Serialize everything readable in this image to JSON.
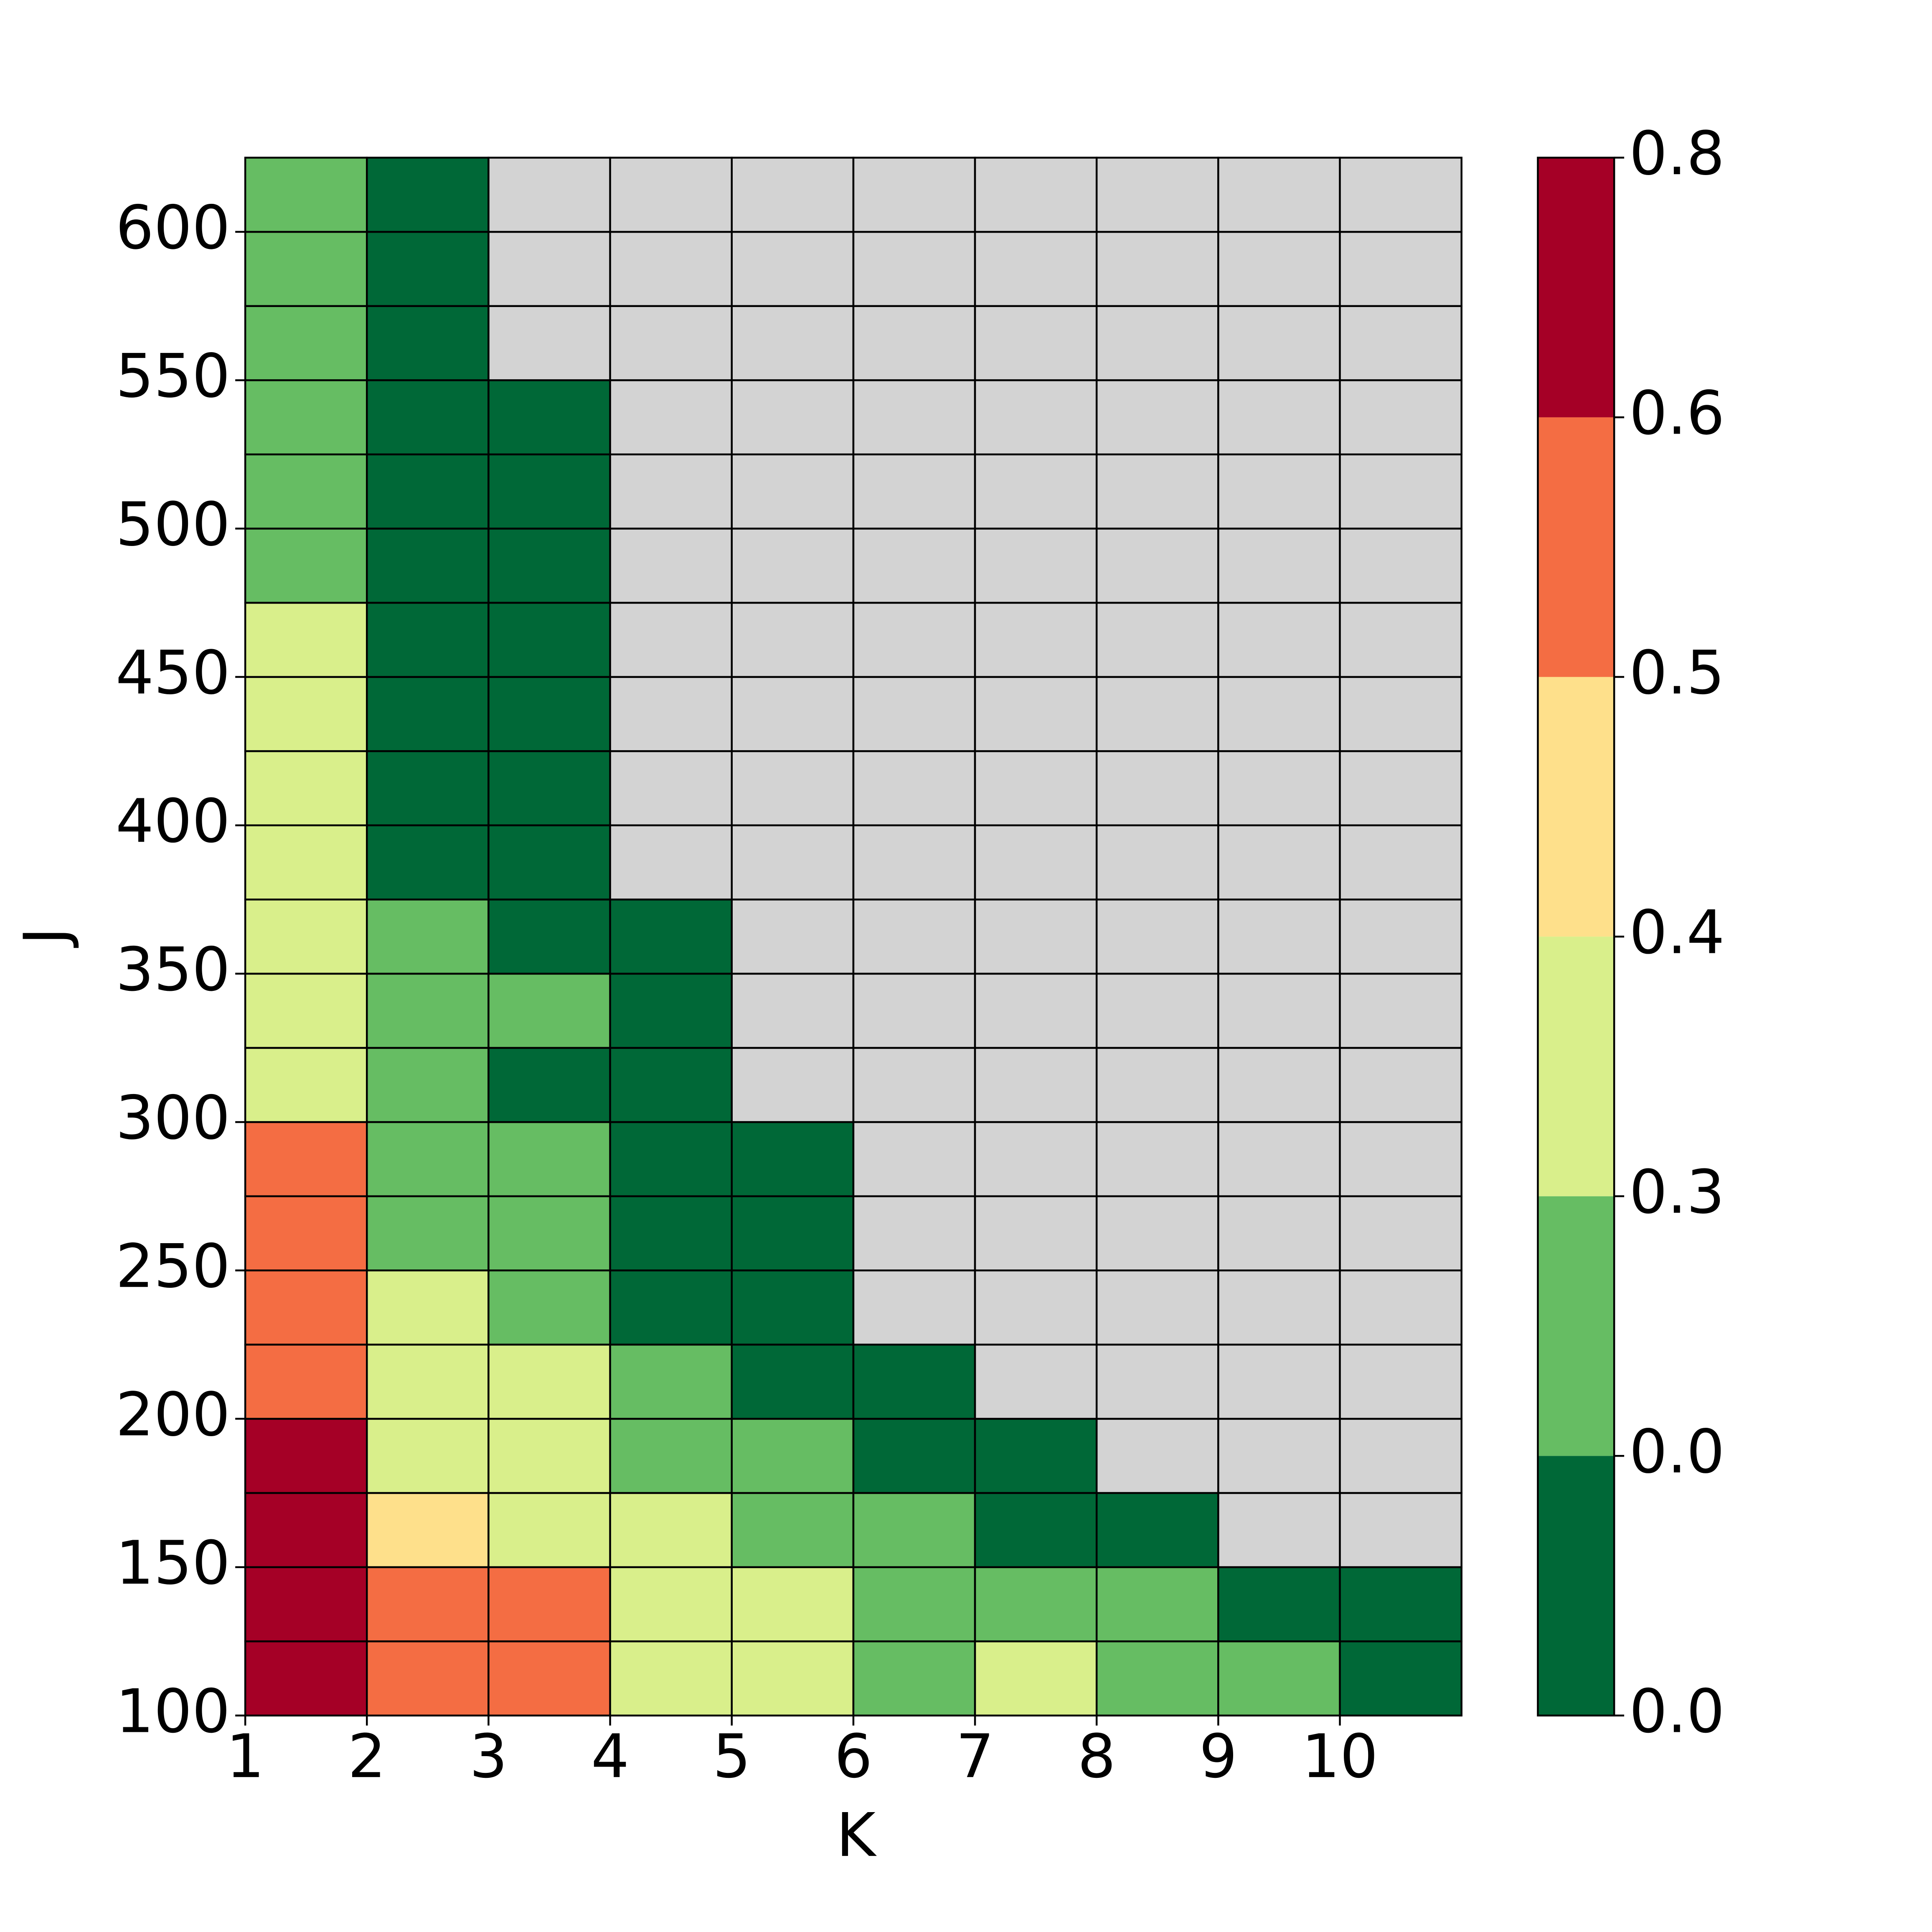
{
  "chart_data": {
    "type": "heatmap",
    "x_label": "K",
    "y_label": "J",
    "x": [
      1,
      2,
      3,
      4,
      5,
      6,
      7,
      8,
      9,
      10
    ],
    "y": [
      100,
      125,
      150,
      175,
      200,
      225,
      250,
      275,
      300,
      325,
      350,
      375,
      400,
      425,
      450,
      475,
      500,
      525,
      550,
      575,
      600
    ],
    "xlim": [
      1,
      11
    ],
    "ylim": [
      100,
      625
    ],
    "xticks": [
      1,
      2,
      3,
      4,
      5,
      6,
      7,
      8,
      9,
      10
    ],
    "yticks": [
      100,
      150,
      200,
      250,
      300,
      350,
      400,
      450,
      500,
      550,
      600
    ],
    "z": [
      [
        0.7,
        0.55,
        0.55,
        0.35,
        0.35,
        0.15,
        0.35,
        0.15,
        0.15,
        0
      ],
      [
        0.7,
        0.55,
        0.55,
        0.35,
        0.35,
        0.15,
        0.15,
        0.15,
        0,
        0
      ],
      [
        0.7,
        0.45,
        0.35,
        0.35,
        0.15,
        0.15,
        0,
        0,
        null,
        null
      ],
      [
        0.7,
        0.35,
        0.35,
        0.15,
        0.15,
        0,
        0,
        null,
        null,
        null
      ],
      [
        0.55,
        0.35,
        0.35,
        0.15,
        0,
        0,
        null,
        null,
        null,
        null
      ],
      [
        0.55,
        0.35,
        0.15,
        0,
        0,
        null,
        null,
        null,
        null,
        null
      ],
      [
        0.55,
        0.15,
        0.15,
        0,
        0,
        null,
        null,
        null,
        null,
        null
      ],
      [
        0.55,
        0.15,
        0.15,
        0,
        0,
        null,
        null,
        null,
        null,
        null
      ],
      [
        0.35,
        0.15,
        0,
        0,
        null,
        null,
        null,
        null,
        null,
        null
      ],
      [
        0.35,
        0.15,
        0.15,
        0,
        null,
        null,
        null,
        null,
        null,
        null
      ],
      [
        0.35,
        0.15,
        0,
        0,
        null,
        null,
        null,
        null,
        null,
        null
      ],
      [
        0.35,
        0,
        0,
        null,
        null,
        null,
        null,
        null,
        null,
        null
      ],
      [
        0.35,
        0,
        0,
        null,
        null,
        null,
        null,
        null,
        null,
        null
      ],
      [
        0.35,
        0,
        0,
        null,
        null,
        null,
        null,
        null,
        null,
        null
      ],
      [
        0.35,
        0,
        0,
        null,
        null,
        null,
        null,
        null,
        null,
        null
      ],
      [
        0.15,
        0,
        0,
        null,
        null,
        null,
        null,
        null,
        null,
        null
      ],
      [
        0.15,
        0,
        0,
        null,
        null,
        null,
        null,
        null,
        null,
        null
      ],
      [
        0.15,
        0,
        0,
        null,
        null,
        null,
        null,
        null,
        null,
        null
      ],
      [
        0.15,
        0,
        null,
        null,
        null,
        null,
        null,
        null,
        null,
        null
      ],
      [
        0.15,
        0,
        null,
        null,
        null,
        null,
        null,
        null,
        null,
        null
      ],
      [
        0.15,
        0,
        null,
        null,
        null,
        null,
        null,
        null,
        null,
        null
      ]
    ],
    "missing_color": "#d3d3d3",
    "colorbar": {
      "boundaries": [
        {
          "value": 0,
          "label": "0.0"
        },
        {
          "value": 0,
          "label": "0.0"
        },
        0.3,
        0.4,
        0.5,
        0.6,
        0.8
      ],
      "colors": [
        "#006837",
        "#66bd63",
        "#d9ef8b",
        "#fee08b",
        "#f46d43",
        "#a50026"
      ]
    }
  }
}
